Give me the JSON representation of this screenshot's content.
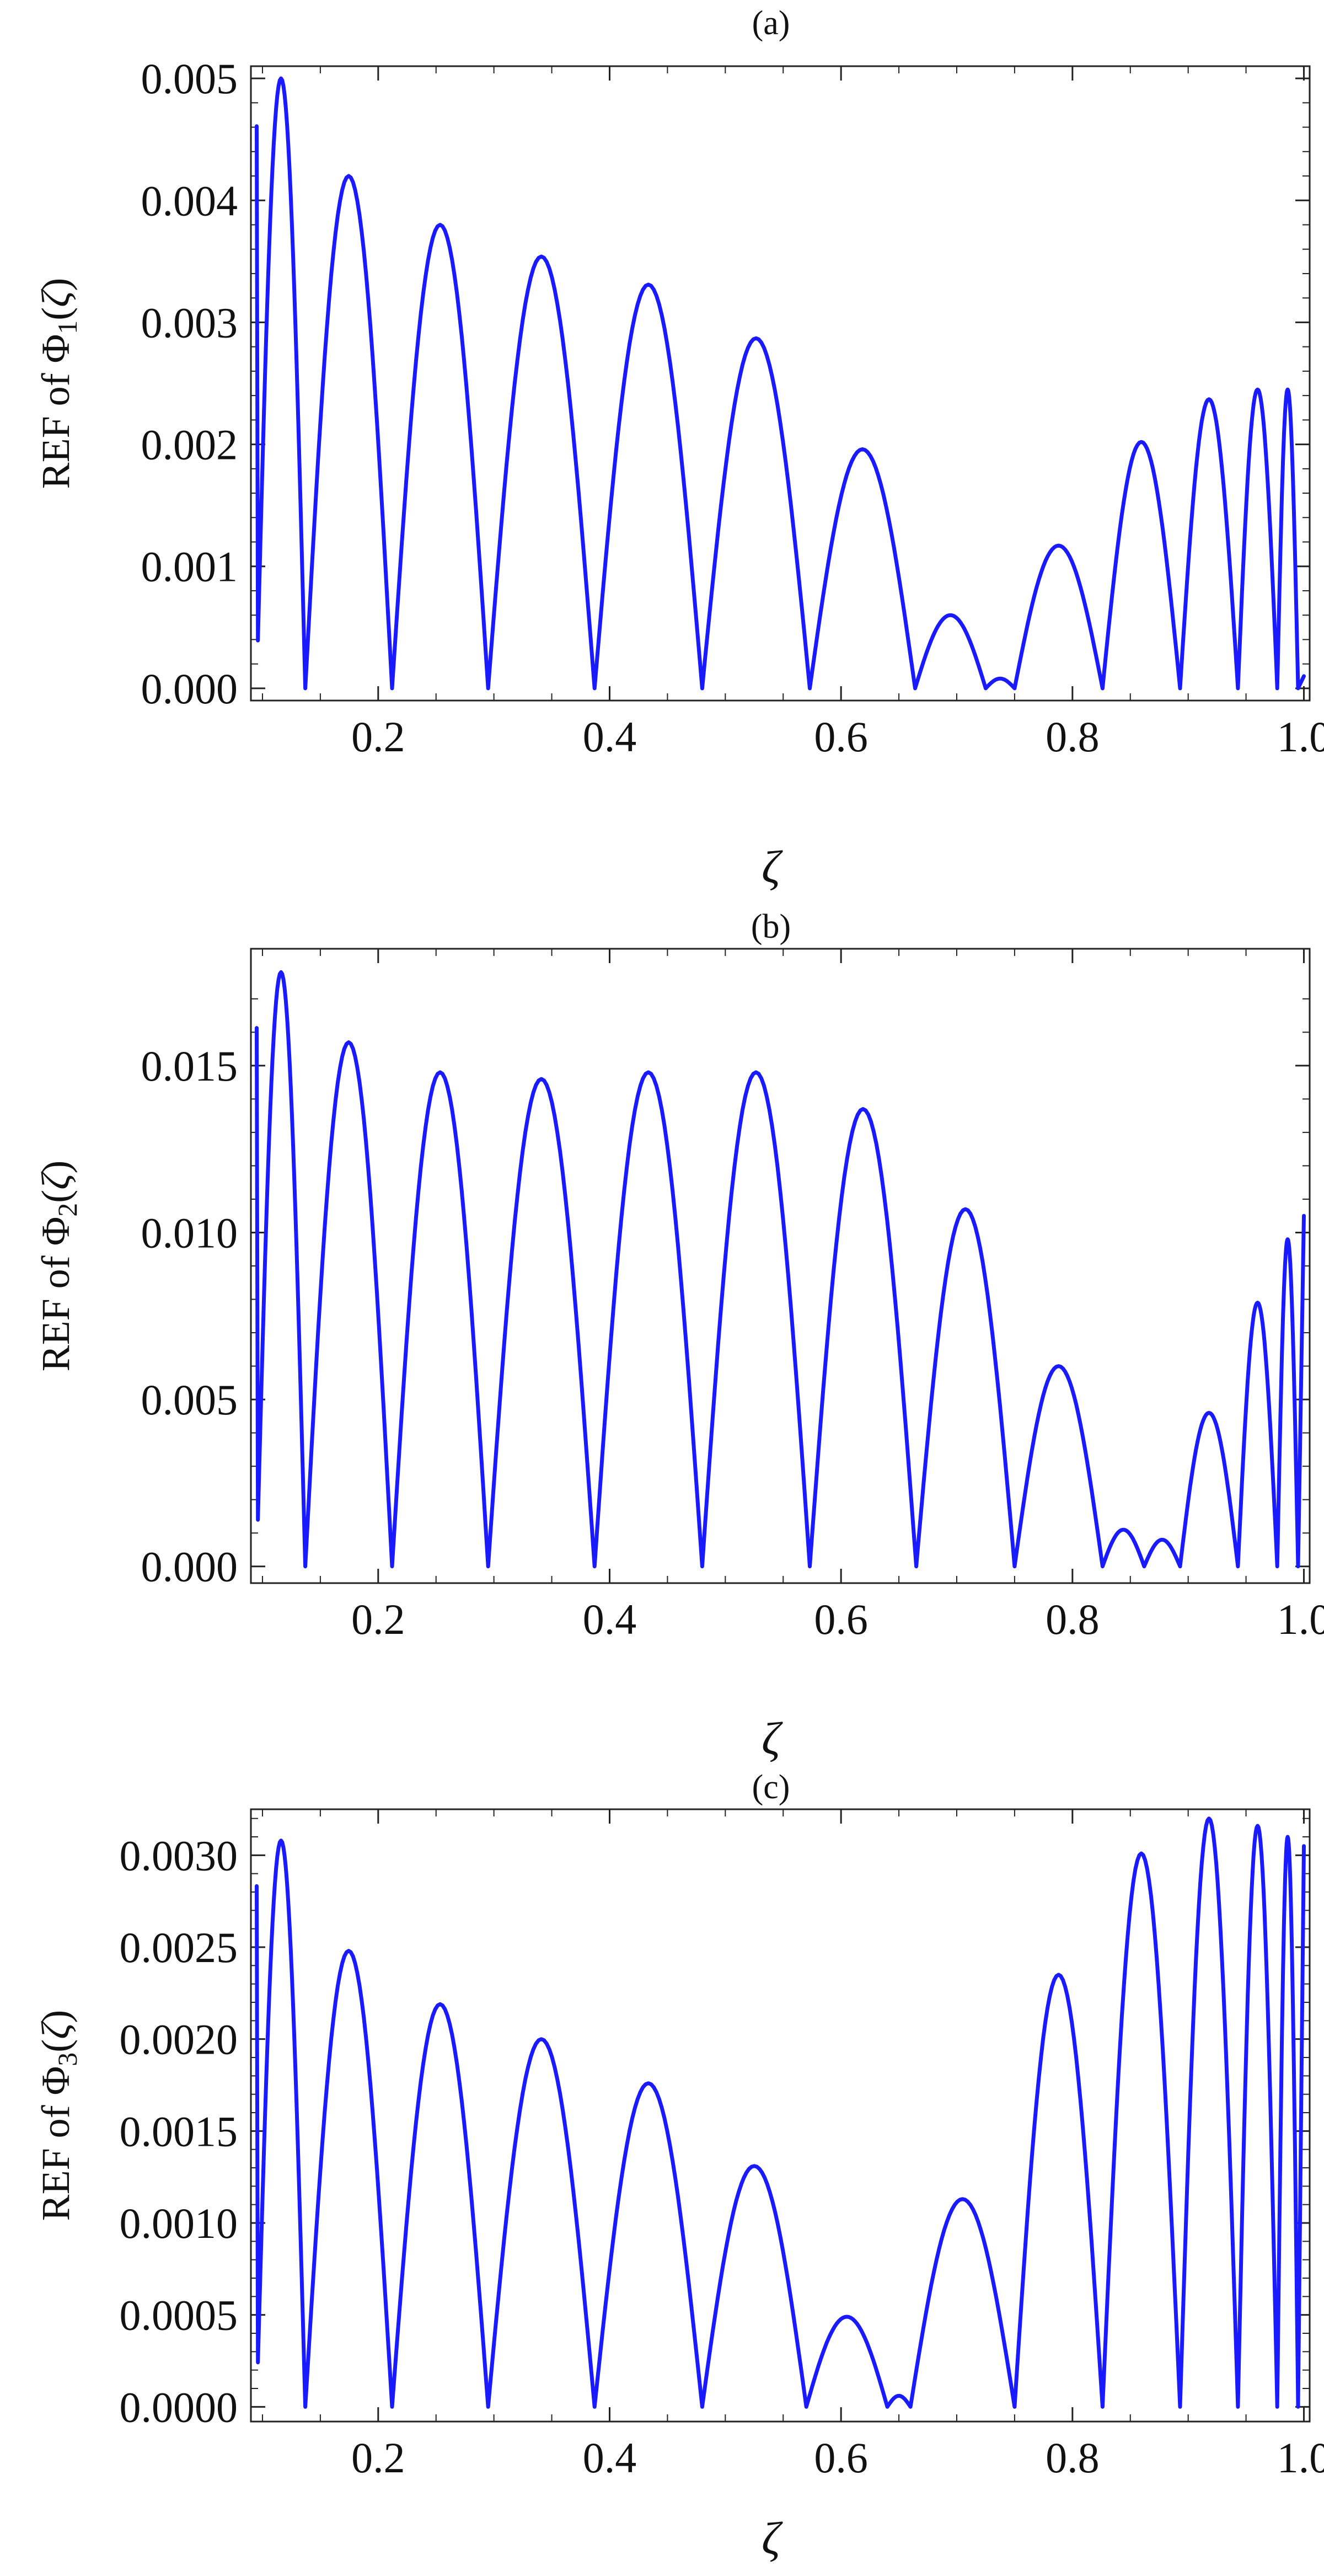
{
  "chart_data": [
    {
      "type": "line",
      "title": "(a)",
      "xlabel": "ζ",
      "ylabel": {
        "prefix": "REF of Φ",
        "subscript": "1",
        "arg_open": "(",
        "arg": "ζ",
        "arg_close": ")"
      },
      "xlim": [
        0.09,
        1.005
      ],
      "ylim": [
        -0.0001,
        0.0051
      ],
      "xticks": [
        0.2,
        0.4,
        0.6,
        0.8,
        1.0
      ],
      "xtick_labels": [
        "0.2",
        "0.4",
        "0.6",
        "0.8",
        "1.0"
      ],
      "yticks": [
        0.0,
        0.001,
        0.002,
        0.003,
        0.004,
        0.005
      ],
      "ytick_labels": [
        "0.000",
        "0.001",
        "0.002",
        "0.003",
        "0.004",
        "0.005"
      ],
      "line_color": "#1a1aff",
      "series": [
        {
          "zeros": [
            0.095,
            0.137,
            0.212,
            0.295,
            0.387,
            0.48,
            0.573,
            0.664,
            0.725,
            0.75,
            0.826,
            0.893,
            0.943,
            0.977,
            0.995
          ],
          "peaks": [
            0.0048,
            0.005,
            0.0042,
            0.0038,
            0.00354,
            0.00331,
            0.00287,
            0.00196,
            0.0006,
            8e-05,
            0.00117,
            0.00202,
            0.00237,
            0.00245,
            0.00245
          ],
          "end": [
            1.0,
            0.0001
          ]
        }
      ]
    },
    {
      "type": "line",
      "title": "(b)",
      "xlabel": "ζ",
      "ylabel": {
        "prefix": "REF of Φ",
        "subscript": "2",
        "arg_open": "(",
        "arg": "ζ",
        "arg_close": ")"
      },
      "xlim": [
        0.09,
        1.005
      ],
      "ylim": [
        -0.0005,
        0.0185
      ],
      "xticks": [
        0.2,
        0.4,
        0.6,
        0.8,
        1.0
      ],
      "xtick_labels": [
        "0.2",
        "0.4",
        "0.6",
        "0.8",
        "1.0"
      ],
      "yticks": [
        0.0,
        0.005,
        0.01,
        0.015
      ],
      "ytick_labels": [
        "0.000",
        "0.005",
        "0.010",
        "0.015"
      ],
      "line_color": "#1a1aff",
      "series": [
        {
          "zeros": [
            0.095,
            0.137,
            0.212,
            0.295,
            0.387,
            0.48,
            0.573,
            0.665,
            0.75,
            0.826,
            0.862,
            0.893,
            0.943,
            0.977,
            0.995
          ],
          "peaks": [
            0.0168,
            0.0178,
            0.0157,
            0.0148,
            0.0146,
            0.0148,
            0.0148,
            0.0137,
            0.0107,
            0.006,
            0.0011,
            0.0008,
            0.0046,
            0.0079,
            0.0098
          ],
          "end": [
            1.0,
            0.0105
          ]
        }
      ]
    },
    {
      "type": "line",
      "title": "(c)",
      "xlabel": "ζ",
      "ylabel": {
        "prefix": "REF of Φ",
        "subscript": "3",
        "arg_open": "(",
        "arg": "ζ",
        "arg_close": ")"
      },
      "xlim": [
        0.09,
        1.005
      ],
      "ylim": [
        -8e-05,
        0.00325
      ],
      "xticks": [
        0.2,
        0.4,
        0.6,
        0.8,
        1.0
      ],
      "xtick_labels": [
        "0.2",
        "0.4",
        "0.6",
        "0.8",
        "1.0"
      ],
      "yticks": [
        0.0,
        0.0005,
        0.001,
        0.0015,
        0.002,
        0.0025,
        0.003
      ],
      "ytick_labels": [
        "0.0000",
        "0.0005",
        "0.0010",
        "0.0015",
        "0.0020",
        "0.0025",
        "0.0030"
      ],
      "line_color": "#1a1aff",
      "series": [
        {
          "zeros": [
            0.095,
            0.137,
            0.212,
            0.295,
            0.387,
            0.48,
            0.57,
            0.64,
            0.66,
            0.75,
            0.826,
            0.893,
            0.943,
            0.977,
            0.995
          ],
          "peaks": [
            0.00295,
            0.00308,
            0.00248,
            0.00219,
            0.002,
            0.00176,
            0.00131,
            0.00049,
            6e-05,
            0.00113,
            0.00235,
            0.00301,
            0.0032,
            0.00316,
            0.0031
          ],
          "end": [
            1.0,
            0.00305
          ]
        }
      ]
    }
  ]
}
